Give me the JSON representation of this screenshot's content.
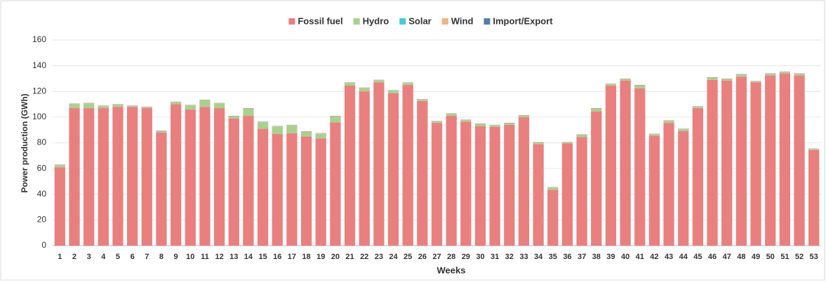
{
  "chart_data": {
    "type": "stacked_bar",
    "xlabel": "Weeks",
    "ylabel": "Power production (GWh)",
    "categories": [
      "1",
      "2",
      "3",
      "4",
      "5",
      "6",
      "7",
      "8",
      "9",
      "10",
      "11",
      "12",
      "13",
      "14",
      "15",
      "16",
      "17",
      "18",
      "19",
      "20",
      "21",
      "22",
      "23",
      "24",
      "25",
      "26",
      "27",
      "28",
      "29",
      "30",
      "31",
      "32",
      "33",
      "34",
      "35",
      "36",
      "37",
      "38",
      "39",
      "40",
      "41",
      "42",
      "43",
      "44",
      "45",
      "46",
      "47",
      "48",
      "49",
      "50",
      "51",
      "52",
      "53"
    ],
    "series": [
      {
        "name": "Fossil fuel",
        "color": "#e98080",
        "values": [
          61,
          107,
          107,
          107,
          108,
          108,
          107,
          88,
          110,
          106,
          108,
          107,
          99,
          101,
          91,
          87,
          87.5,
          85,
          83.5,
          96,
          124.5,
          120,
          127,
          118.5,
          125,
          112.5,
          95.5,
          101,
          96.5,
          93,
          92.5,
          94,
          100,
          79,
          43.5,
          79.5,
          84.5,
          104.5,
          124.5,
          128.5,
          122.5,
          85.5,
          95.5,
          89,
          107,
          129,
          128.5,
          131.5,
          127,
          132.5,
          134,
          132.5,
          74.5
        ]
      },
      {
        "name": "Hydro",
        "color": "#a9d18e",
        "values": [
          1.5,
          3,
          3.5,
          1.5,
          1.5,
          0.5,
          0.5,
          1,
          1.5,
          3,
          5,
          3.5,
          1.5,
          5.5,
          5,
          5.5,
          6,
          3.5,
          3.5,
          4.5,
          2,
          2.5,
          1.5,
          2,
          1.5,
          1,
          1,
          1.5,
          1,
          1.5,
          1,
          1,
          1,
          1,
          1.5,
          0.5,
          1.5,
          2,
          1,
          1,
          2,
          1,
          1.5,
          1.5,
          1,
          1.5,
          1,
          1.5,
          0.5,
          1,
          1,
          1,
          0.5
        ]
      },
      {
        "name": "Solar",
        "color": "#4bc6dd",
        "values": [
          0,
          0,
          0,
          0,
          0,
          0,
          0,
          0,
          0,
          0,
          0,
          0,
          0,
          0,
          0,
          0,
          0,
          0,
          0,
          0,
          0,
          0,
          0,
          0,
          0,
          0,
          0,
          0,
          0,
          0,
          0,
          0,
          0,
          0,
          0,
          0,
          0,
          0,
          0,
          0,
          0,
          0,
          0,
          0,
          0,
          0,
          0,
          0,
          0,
          0,
          0,
          0,
          0
        ]
      },
      {
        "name": "Wind",
        "color": "#f4b183",
        "values": [
          0.3,
          0.3,
          0.3,
          0.3,
          0.3,
          0.3,
          0.3,
          0.3,
          0.3,
          0.3,
          0.3,
          0.3,
          0.3,
          0.3,
          0.3,
          0.3,
          0.3,
          0.3,
          0.3,
          0.3,
          0.3,
          0.3,
          0.3,
          0.3,
          0.3,
          0.3,
          0.3,
          0.3,
          0.3,
          0.3,
          0.3,
          0.3,
          0.3,
          0.3,
          0.3,
          0.3,
          0.3,
          0.3,
          0.3,
          0.3,
          0.3,
          0.3,
          0.3,
          0.3,
          0.3,
          0.3,
          0.3,
          0.3,
          0.3,
          0.3,
          0.3,
          0.3,
          0.3
        ]
      },
      {
        "name": "Import/Export",
        "color": "#5a7ea0",
        "values": [
          0.2,
          0.2,
          0.2,
          0.2,
          0.2,
          0.2,
          0.2,
          0.2,
          0.2,
          0.2,
          0.2,
          0.2,
          0.2,
          0.2,
          0.2,
          0.2,
          0.2,
          0.2,
          0.2,
          0.2,
          0.2,
          0.2,
          0.2,
          0.2,
          0.2,
          0.2,
          0.2,
          0.2,
          0.2,
          0.2,
          0.2,
          0.2,
          0.2,
          0.2,
          0.2,
          0.2,
          0.2,
          0.2,
          0.2,
          0.2,
          0.2,
          0.2,
          0.2,
          0.2,
          0.2,
          0.2,
          0.2,
          0.2,
          0.2,
          0.2,
          0.2,
          0.2,
          0.2
        ]
      }
    ],
    "ylim": [
      0,
      160
    ],
    "yticks": [
      0,
      20,
      40,
      60,
      80,
      100,
      120,
      140,
      160
    ],
    "grid": true,
    "legend": "top"
  }
}
